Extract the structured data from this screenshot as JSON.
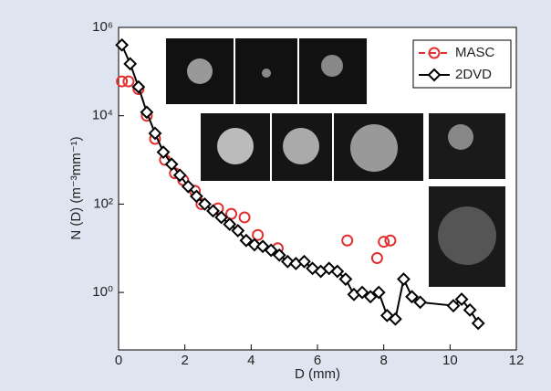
{
  "chart_data": {
    "type": "line",
    "x_label": "D (mm)",
    "y_label": "N (D) (m⁻³mm⁻¹)",
    "log_y": true,
    "grid": false,
    "legend": "upper right",
    "xlim": [
      0,
      12
    ],
    "xticks": [
      0,
      2,
      4,
      6,
      8,
      10,
      12
    ],
    "ylim": [
      0.05,
      1000000
    ],
    "yticks": [
      {
        "value": 1,
        "label": "10⁰"
      },
      {
        "value": 100,
        "label": "10²"
      },
      {
        "value": 10000,
        "label": "10⁴"
      },
      {
        "value": 1000000,
        "label": "10⁶"
      }
    ],
    "series": [
      {
        "name": "MASC",
        "color": "#e03030",
        "style": "dashed",
        "marker": "circle",
        "x": [
          0.1,
          0.3,
          0.6,
          0.85,
          1.1,
          1.4,
          1.7,
          1.95,
          2.3,
          2.5,
          3.0,
          3.4,
          3.8,
          4.2,
          4.8,
          6.9,
          7.8,
          8.0,
          8.2
        ],
        "values": [
          60000,
          60000,
          40000,
          10000,
          3000,
          1000,
          500,
          350,
          200,
          100,
          80,
          60,
          50,
          20,
          10,
          15,
          6,
          14,
          15
        ]
      },
      {
        "name": "2DVD",
        "color": "#000000",
        "style": "solid",
        "marker": "diamond",
        "x": [
          0.1,
          0.35,
          0.6,
          0.85,
          1.1,
          1.35,
          1.6,
          1.85,
          2.1,
          2.35,
          2.6,
          2.85,
          3.1,
          3.35,
          3.6,
          3.85,
          4.1,
          4.35,
          4.6,
          4.85,
          5.1,
          5.35,
          5.6,
          5.85,
          6.1,
          6.35,
          6.6,
          6.85,
          7.1,
          7.35,
          7.6,
          7.85,
          8.1,
          8.35,
          8.6,
          8.85,
          9.1,
          10.1,
          10.35,
          10.6,
          10.85
        ],
        "values": [
          400000,
          150000,
          45000,
          12000,
          4000,
          1500,
          800,
          450,
          250,
          150,
          100,
          70,
          50,
          35,
          25,
          15,
          12,
          11,
          9,
          7,
          5,
          4.5,
          5,
          3.5,
          3,
          3.5,
          3,
          2,
          0.9,
          1,
          0.8,
          1,
          0.3,
          0.25,
          2,
          0.8,
          0.6,
          0.5,
          0.7,
          0.4,
          0.2
        ]
      }
    ]
  }
}
